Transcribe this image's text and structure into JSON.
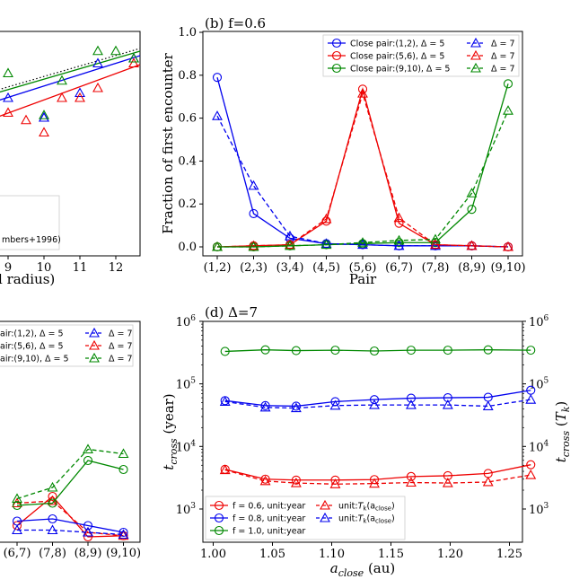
{
  "colors": {
    "blue": "#0000ee",
    "red": "#ee0000",
    "green": "#008800"
  },
  "panel_a": {
    "xticks": [
      "9",
      "10",
      "11",
      "12"
    ],
    "xlabel_fragment": "l radius)",
    "legend_fragment": "mbers+1996)"
  },
  "panel_c": {
    "xticks": [
      "(6,7)",
      "(7,8)",
      "(8,9)",
      "(9,10)"
    ],
    "legend": [
      {
        "text": "air:(1,2), Δ = 5",
        "dash": "Δ = 7",
        "color": "blue"
      },
      {
        "text": "air:(5,6), Δ = 5",
        "dash": "Δ = 7",
        "color": "red"
      },
      {
        "text": "air:(9,10), Δ = 5",
        "dash": "Δ = 7",
        "color": "green"
      }
    ]
  },
  "chart_data": [
    {
      "panel": "a",
      "type": "scatter",
      "note": "partially cropped panel; only right portion visible",
      "xticks": [
        "9",
        "10",
        "11",
        "12"
      ],
      "xlabel": "l radius)",
      "series": [
        {
          "name": "blue triangles",
          "color": "blue",
          "x": [
            9.0,
            10.0,
            10.0,
            11.0,
            11.5,
            12.5
          ],
          "y": [
            0.64,
            0.56,
            0.56,
            0.66,
            0.78,
            0.8
          ]
        },
        {
          "name": "red triangles",
          "color": "red",
          "x": [
            9.0,
            9.5,
            10.0,
            10.5,
            11.0,
            11.5,
            12.5
          ],
          "y": [
            0.58,
            0.55,
            0.5,
            0.64,
            0.64,
            0.68,
            0.78
          ]
        },
        {
          "name": "green triangles",
          "color": "green",
          "x": [
            9.0,
            10.0,
            10.5,
            11.5,
            12.0,
            12.5
          ],
          "y": [
            0.74,
            0.57,
            0.71,
            0.83,
            0.83,
            0.8
          ]
        }
      ]
    },
    {
      "panel": "b",
      "type": "line",
      "title": "(b) f=0.6",
      "xlabel": "Pair",
      "ylabel": "Fraction of first encounter",
      "categories": [
        "(1,2)",
        "(2,3)",
        "(3,4)",
        "(4,5)",
        "(5,6)",
        "(6,7)",
        "(7,8)",
        "(8,9)",
        "(9,10)"
      ],
      "ylim": [
        0.0,
        1.0
      ],
      "yticks": [
        "0.0",
        "0.2",
        "0.4",
        "0.6",
        "0.8",
        "1.0"
      ],
      "series": [
        {
          "name": "Close pair:(1,2), Δ = 5",
          "color": "blue",
          "style": "solid",
          "marker": "circle",
          "values": [
            0.79,
            0.155,
            0.04,
            0.015,
            0.01,
            0.005,
            0.005,
            0.005,
            0.0
          ]
        },
        {
          "name": "Close pair:(5,6), Δ = 5",
          "color": "red",
          "style": "solid",
          "marker": "circle",
          "values": [
            0.0,
            0.005,
            0.01,
            0.12,
            0.735,
            0.11,
            0.01,
            0.005,
            0.0
          ]
        },
        {
          "name": "Close pair:(9,10), Δ = 5",
          "color": "green",
          "style": "solid",
          "marker": "circle",
          "values": [
            0.0,
            0.0,
            0.005,
            0.01,
            0.015,
            0.02,
            0.02,
            0.175,
            0.76
          ]
        },
        {
          "name": "Δ = 7",
          "color": "blue",
          "style": "dashed",
          "marker": "triangle",
          "values": [
            0.61,
            0.285,
            0.05,
            0.015,
            0.01,
            0.005,
            0.005,
            0.005,
            0.0
          ]
        },
        {
          "name": "Δ = 7",
          "color": "red",
          "style": "dashed",
          "marker": "triangle",
          "values": [
            0.0,
            0.005,
            0.01,
            0.13,
            0.715,
            0.135,
            0.01,
            0.005,
            0.0
          ]
        },
        {
          "name": "Δ = 7",
          "color": "green",
          "style": "dashed",
          "marker": "triangle",
          "values": [
            0.0,
            0.0,
            0.005,
            0.01,
            0.02,
            0.03,
            0.035,
            0.25,
            0.635
          ]
        }
      ]
    },
    {
      "panel": "c",
      "type": "line",
      "note": "partially cropped panel; only right portion visible",
      "categories": [
        "(6,7)",
        "(7,8)",
        "(8,9)",
        "(9,10)"
      ],
      "series": [
        {
          "name": "red solid",
          "color": "red",
          "style": "solid",
          "values": [
            0.05,
            0.18,
            0.0,
            0.005
          ]
        },
        {
          "name": "red dashed",
          "color": "red",
          "style": "dashed",
          "values": [
            0.15,
            0.16,
            0.02,
            0.005
          ]
        },
        {
          "name": "blue solid",
          "color": "blue",
          "style": "solid",
          "values": [
            0.07,
            0.08,
            0.05,
            0.02
          ]
        },
        {
          "name": "blue dashed",
          "color": "blue",
          "style": "dashed",
          "values": [
            0.03,
            0.03,
            0.02,
            0.01
          ]
        },
        {
          "name": "green solid",
          "color": "green",
          "style": "solid",
          "values": [
            0.14,
            0.15,
            0.34,
            0.3
          ]
        },
        {
          "name": "green dashed",
          "color": "green",
          "style": "dashed",
          "values": [
            0.17,
            0.22,
            0.39,
            0.37
          ]
        }
      ]
    },
    {
      "panel": "d",
      "type": "line",
      "title": "(d) Δ=7",
      "xlabel": "a_close (au)",
      "ylabel_left": "t_cross (year)",
      "ylabel_right": "t_cross (T_k)",
      "xlim": [
        0.99,
        1.29
      ],
      "xticks": [
        "1.00",
        "1.05",
        "1.10",
        "1.15",
        "1.20",
        "1.25"
      ],
      "yscale": "log",
      "ylim": [
        300,
        1000000
      ],
      "yticks_exponent": [
        "3",
        "4",
        "5",
        "6"
      ],
      "series": [
        {
          "name": "f = 0.6, unit:year",
          "color": "red",
          "style": "solid",
          "marker": "circle",
          "x": [
            1.01,
            1.044,
            1.07,
            1.103,
            1.136,
            1.167,
            1.198,
            1.232,
            1.268
          ],
          "y": [
            4300,
            3000,
            2900,
            2900,
            2950,
            3300,
            3400,
            3700,
            5100
          ]
        },
        {
          "name": "f = 0.8, unit:year",
          "color": "blue",
          "style": "solid",
          "marker": "circle",
          "x": [
            1.01,
            1.044,
            1.07,
            1.103,
            1.136,
            1.167,
            1.198,
            1.232,
            1.268
          ],
          "y": [
            54000,
            45000,
            44000,
            52000,
            56000,
            59000,
            60000,
            61000,
            79000
          ]
        },
        {
          "name": "f = 1.0, unit:year",
          "color": "green",
          "style": "solid",
          "marker": "circle",
          "x": [
            1.01,
            1.044,
            1.07,
            1.103,
            1.136,
            1.167,
            1.198,
            1.232,
            1.268
          ],
          "y": [
            330000,
            350000,
            340000,
            345000,
            335000,
            345000,
            345000,
            350000,
            345000
          ]
        },
        {
          "name": "unit:T_k(a_close)",
          "color": "red",
          "style": "dashed",
          "marker": "triangle",
          "x": [
            1.01,
            1.044,
            1.07,
            1.103,
            1.136,
            1.167,
            1.198,
            1.232,
            1.268
          ],
          "y": [
            4200,
            2800,
            2600,
            2500,
            2550,
            2650,
            2600,
            2700,
            3500
          ]
        },
        {
          "name": "unit:T_k(a_close)",
          "color": "blue",
          "style": "dashed",
          "marker": "triangle",
          "x": [
            1.01,
            1.044,
            1.07,
            1.103,
            1.136,
            1.167,
            1.198,
            1.232,
            1.268
          ],
          "y": [
            52000,
            42000,
            41000,
            45000,
            46000,
            46000,
            46000,
            44000,
            56000
          ]
        }
      ]
    }
  ],
  "legends": {
    "b": [
      {
        "text": "Close pair:(1,2), Δ = 5",
        "color": "blue"
      },
      {
        "text": "Close pair:(5,6), Δ = 5",
        "color": "red"
      },
      {
        "text": "Close pair:(9,10), Δ = 5",
        "color": "green"
      },
      {
        "text": "Δ = 7",
        "color": "blue"
      },
      {
        "text": "Δ = 7",
        "color": "red"
      },
      {
        "text": "Δ = 7",
        "color": "green"
      }
    ],
    "d": [
      {
        "text": "f = 0.6, unit:year",
        "color": "red"
      },
      {
        "text": "f = 0.8, unit:year",
        "color": "blue"
      },
      {
        "text": "f = 1.0, unit:year",
        "color": "green"
      },
      {
        "text": "unit:",
        "sym": "T",
        "sub": "k",
        "paren": "(a",
        "psub": "close",
        "close": ")",
        "color": "red"
      },
      {
        "text": "unit:",
        "sym": "T",
        "sub": "k",
        "paren": "(a",
        "psub": "close",
        "close": ")",
        "color": "blue"
      }
    ]
  },
  "axis_text": {
    "b_title": "(b) f=0.6",
    "b_xlabel": "Pair",
    "b_ylabel": "Fraction of first encounter",
    "d_title": "(d) Δ=7",
    "d_xlabel_main": "a",
    "d_xlabel_sub": "close",
    "d_xlabel_unit": " (au)",
    "d_ylabel_left_main": "t",
    "d_ylabel_left_sub": "cross",
    "d_ylabel_left_unit": " (year)",
    "d_ylabel_right_main": "t",
    "d_ylabel_right_sub": "cross",
    "d_ylabel_right_unit": " (",
    "d_ylabel_right_T": "T",
    "d_ylabel_right_k": "k",
    "d_ylabel_right_close": ")",
    "d_ytick_base": "10"
  }
}
